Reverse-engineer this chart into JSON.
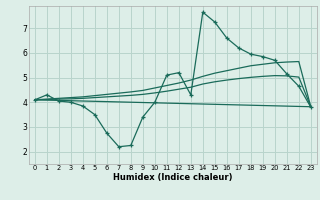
{
  "xlabel": "Humidex (Indice chaleur)",
  "bg_color": "#ddeee8",
  "grid_color": "#b8d4cc",
  "line_color": "#1a6b5a",
  "xlim": [
    -0.5,
    23.5
  ],
  "ylim": [
    1.5,
    7.9
  ],
  "yticks": [
    2,
    3,
    4,
    5,
    6,
    7
  ],
  "xticks": [
    0,
    1,
    2,
    3,
    4,
    5,
    6,
    7,
    8,
    9,
    10,
    11,
    12,
    13,
    14,
    15,
    16,
    17,
    18,
    19,
    20,
    21,
    22,
    23
  ],
  "series1_x": [
    0,
    1,
    2,
    3,
    4,
    5,
    6,
    7,
    8,
    9,
    10,
    11,
    12,
    13,
    14,
    15,
    16,
    17,
    18,
    19,
    20,
    21,
    22,
    23
  ],
  "series1_y": [
    4.1,
    4.3,
    4.05,
    4.0,
    3.85,
    3.5,
    2.75,
    2.2,
    2.25,
    3.4,
    4.0,
    5.1,
    5.2,
    4.3,
    7.65,
    7.25,
    6.6,
    6.2,
    5.95,
    5.85,
    5.7,
    5.15,
    4.65,
    3.8
  ],
  "series2_x": [
    0,
    1,
    2,
    3,
    4,
    5,
    6,
    7,
    8,
    9,
    10,
    11,
    12,
    13,
    14,
    15,
    16,
    17,
    18,
    19,
    20,
    21,
    22,
    23
  ],
  "series2_y": [
    4.1,
    4.13,
    4.16,
    4.19,
    4.22,
    4.27,
    4.32,
    4.37,
    4.42,
    4.48,
    4.58,
    4.68,
    4.78,
    4.9,
    5.05,
    5.18,
    5.28,
    5.38,
    5.48,
    5.54,
    5.6,
    5.63,
    5.65,
    3.82
  ],
  "series3_x": [
    0,
    1,
    2,
    3,
    4,
    5,
    6,
    7,
    8,
    9,
    10,
    11,
    12,
    13,
    14,
    15,
    16,
    17,
    18,
    19,
    20,
    21,
    22,
    23
  ],
  "series3_y": [
    4.1,
    4.11,
    4.13,
    4.14,
    4.16,
    4.19,
    4.22,
    4.25,
    4.28,
    4.32,
    4.38,
    4.45,
    4.53,
    4.61,
    4.74,
    4.83,
    4.9,
    4.96,
    5.01,
    5.05,
    5.08,
    5.07,
    5.02,
    3.82
  ],
  "series4_x": [
    0,
    23
  ],
  "series4_y": [
    4.1,
    3.82
  ]
}
